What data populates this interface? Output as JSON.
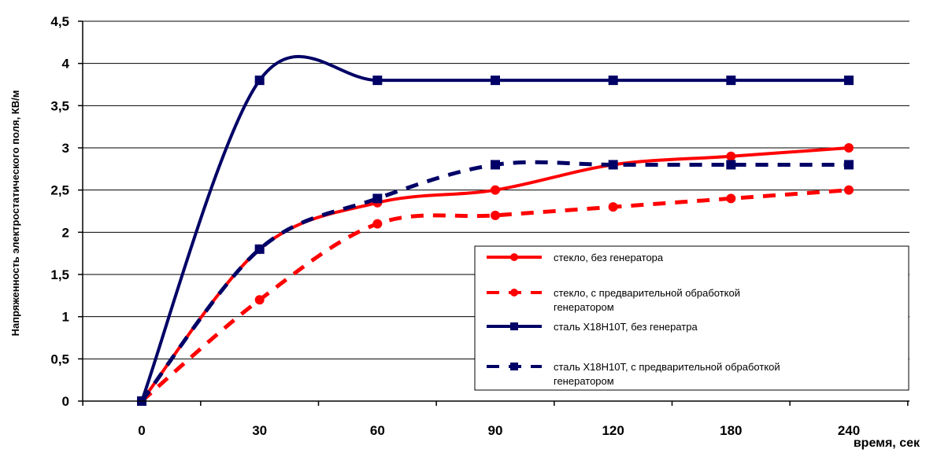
{
  "chart_data": {
    "type": "line",
    "title": "",
    "xlabel": "время, сек",
    "ylabel": "Напряженность электростатического поля, КВ/м",
    "x_categories": [
      "0",
      "30",
      "60",
      "90",
      "120",
      "180",
      "240"
    ],
    "ylim": [
      0,
      4.5
    ],
    "yticks": [
      "0",
      "0,5",
      "1",
      "1,5",
      "2",
      "2,5",
      "3",
      "3,5",
      "4",
      "4,5"
    ],
    "grid": "horizontal",
    "legend_position": "bottom-right",
    "series": [
      {
        "name": "стекло, без генератора",
        "color": "#ff0000",
        "style": "solid",
        "marker": "circle",
        "values": [
          0,
          1.8,
          2.35,
          2.5,
          2.8,
          2.9,
          3.0
        ]
      },
      {
        "name": "стекло, с предварительной обработкой генератором",
        "color": "#ff0000",
        "style": "dashed",
        "marker": "circle",
        "values": [
          0,
          1.2,
          2.1,
          2.2,
          2.3,
          2.4,
          2.5
        ]
      },
      {
        "name": "сталь Х18Н10Т, без генератра",
        "color": "#000066",
        "style": "solid",
        "marker": "square",
        "values": [
          0,
          3.8,
          3.8,
          3.8,
          3.8,
          3.8,
          3.8
        ]
      },
      {
        "name": "сталь Х18Н10Т, с предварительной обработкой генератором",
        "color": "#000066",
        "style": "dashed",
        "marker": "square",
        "values": [
          0,
          1.8,
          2.4,
          2.8,
          2.8,
          2.8,
          2.8
        ]
      }
    ]
  }
}
